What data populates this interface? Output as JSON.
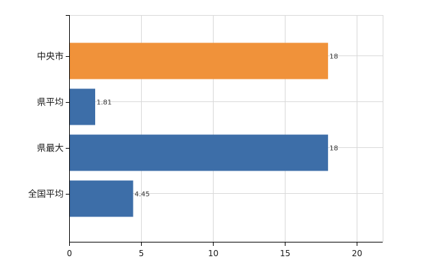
{
  "chart_data": {
    "type": "bar",
    "orientation": "horizontal",
    "categories": [
      "中央市",
      "県平均",
      "県最大",
      "全国平均"
    ],
    "values": [
      18,
      1.81,
      18,
      4.45
    ],
    "data_labels": [
      "18",
      "1.81",
      "18",
      "4.45"
    ],
    "bar_colors": [
      "#f0923a",
      "#3d6ea8",
      "#3d6ea8",
      "#3d6ea8"
    ],
    "xlim": [
      0,
      21.8
    ],
    "x_ticks": [
      0,
      5,
      10,
      15,
      20
    ],
    "grid": true,
    "title": "",
    "xlabel": "",
    "ylabel": ""
  }
}
